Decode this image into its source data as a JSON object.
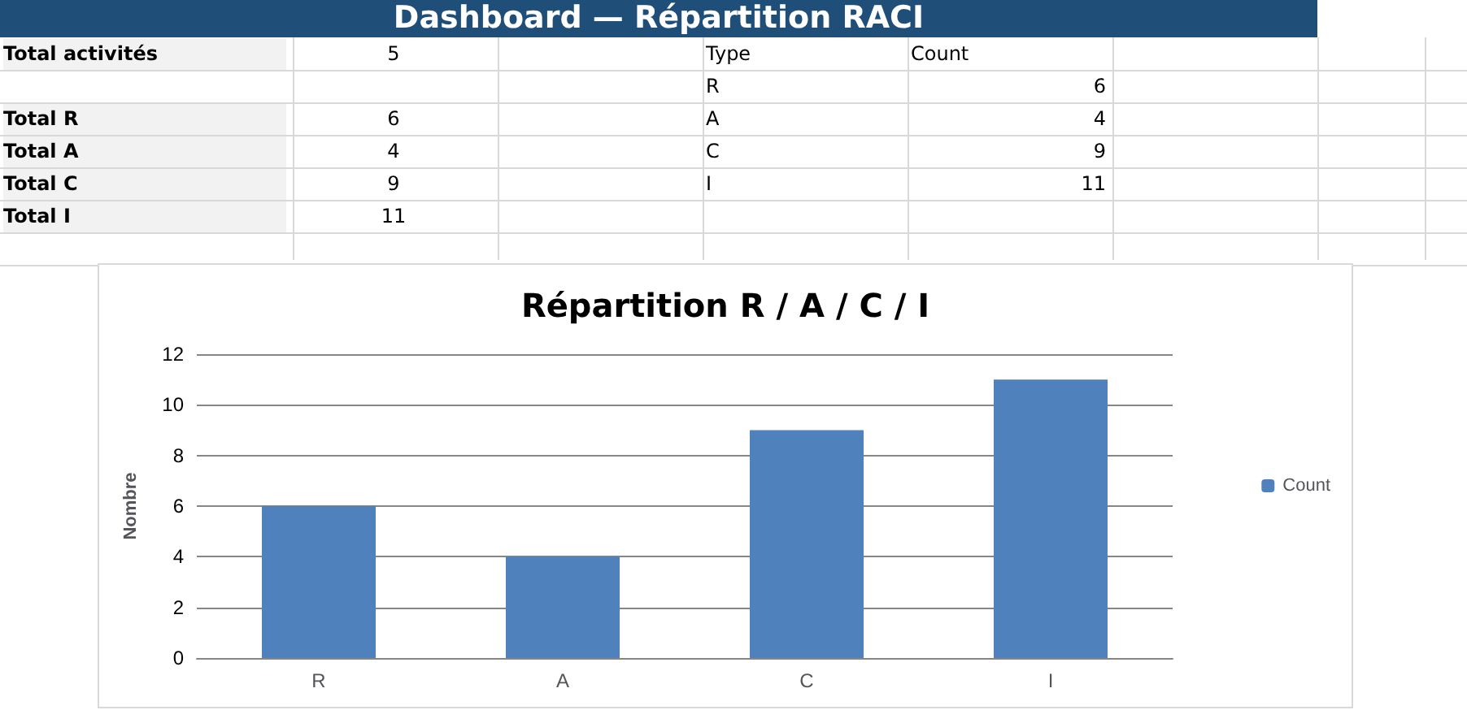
{
  "chart_data": [
    {
      "type": "other",
      "title": "Dashboard — Répartition RACI",
      "annotations": [
        "Total activités",
        "5",
        "Type",
        "Count",
        "R",
        "6",
        "Total R",
        "6",
        "A",
        "4",
        "Total A",
        "4",
        "C",
        "9",
        "Total C",
        "9",
        "I",
        "11",
        "Total I",
        "11"
      ]
    },
    {
      "type": "bar",
      "title": "Répartition R / A / C / I",
      "ylabel": "Nombre",
      "categories": [
        "R",
        "A",
        "C",
        "I"
      ],
      "series": [
        {
          "name": "Count",
          "color": "#4f81bd",
          "values": [
            6,
            4,
            9,
            11
          ]
        }
      ],
      "ylim": [
        0,
        12
      ],
      "yticks": [
        0,
        2,
        4,
        6,
        8,
        10,
        12
      ],
      "grid": "y",
      "legend": "right"
    }
  ]
}
